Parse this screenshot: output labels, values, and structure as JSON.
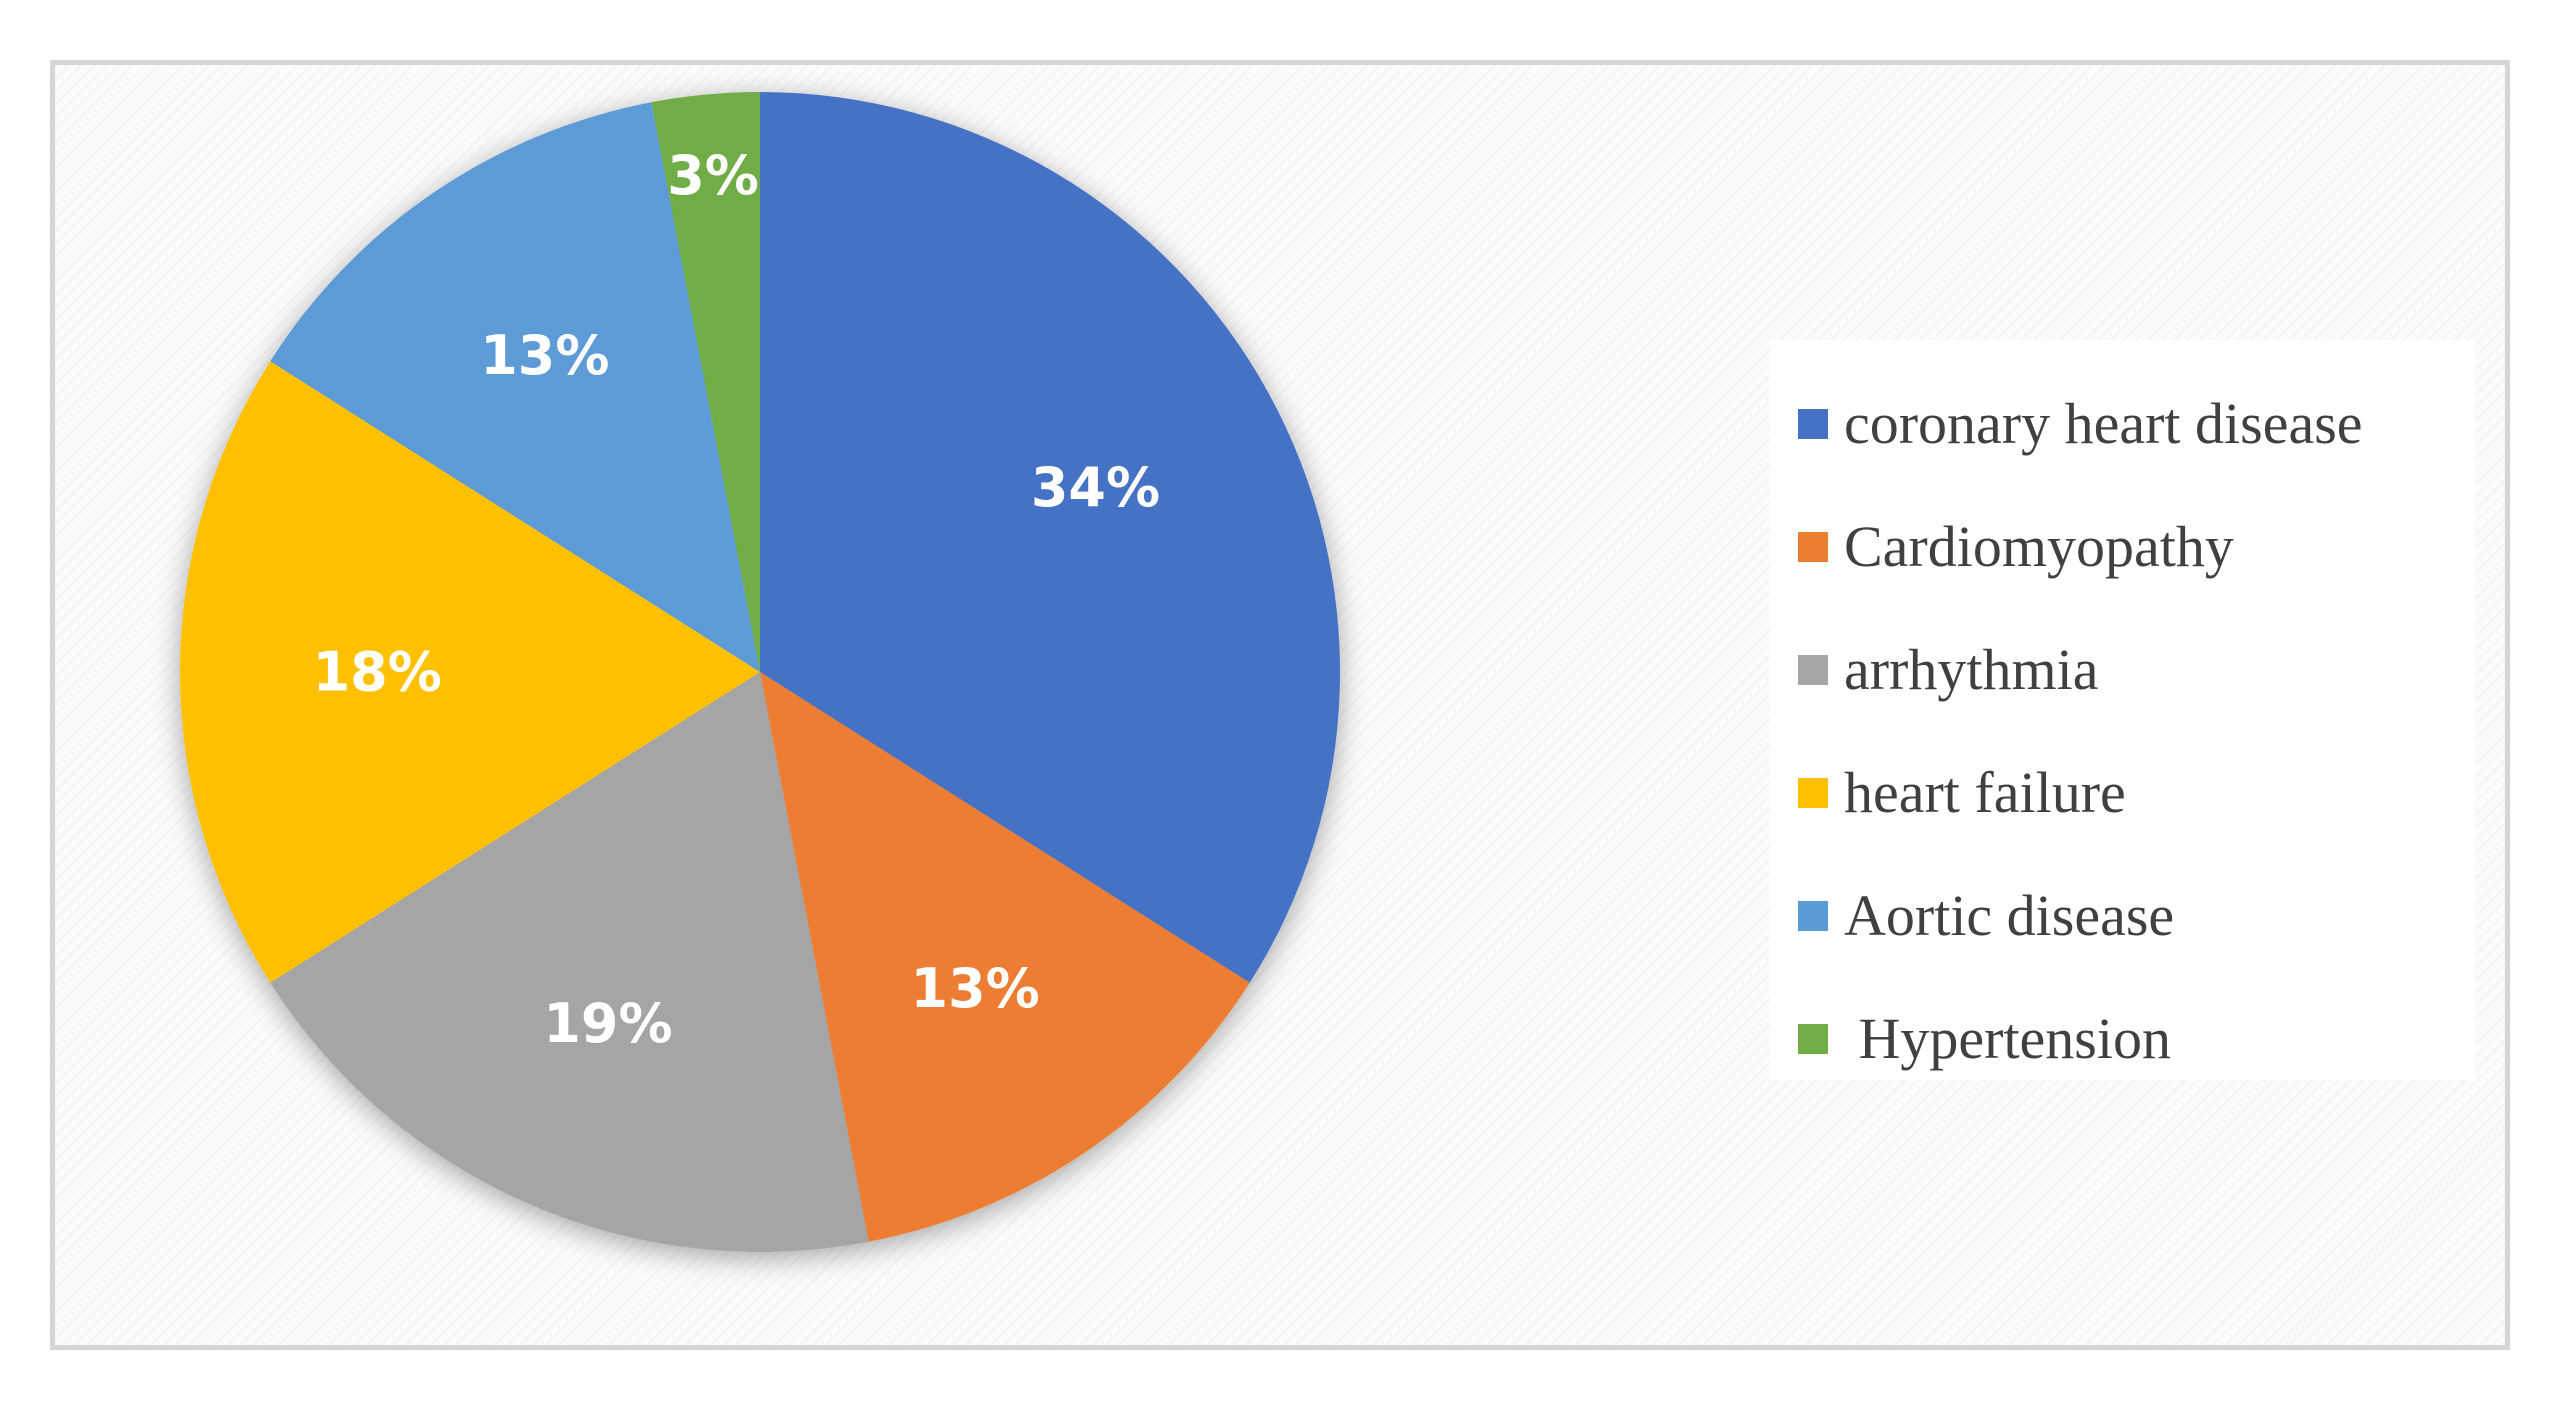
{
  "chart_data": {
    "type": "pie",
    "title": "",
    "start_angle_deg": 0,
    "direction": "clockwise",
    "legend_position": "right",
    "series": [
      {
        "categories": [
          "coronary heart disease",
          "Cardiomyopathy",
          "arrhythmia",
          "heart failure",
          "Aortic disease",
          " Hypertension"
        ],
        "values": [
          34,
          13,
          19,
          18,
          13,
          3
        ],
        "labels": [
          "34%",
          "13%",
          "19%",
          "18%",
          "13%",
          "3%"
        ],
        "colors": [
          "#4472c4",
          "#ed7d31",
          "#a5a5a5",
          "#ffc000",
          "#5b9bd5",
          "#70ad47"
        ]
      }
    ]
  }
}
